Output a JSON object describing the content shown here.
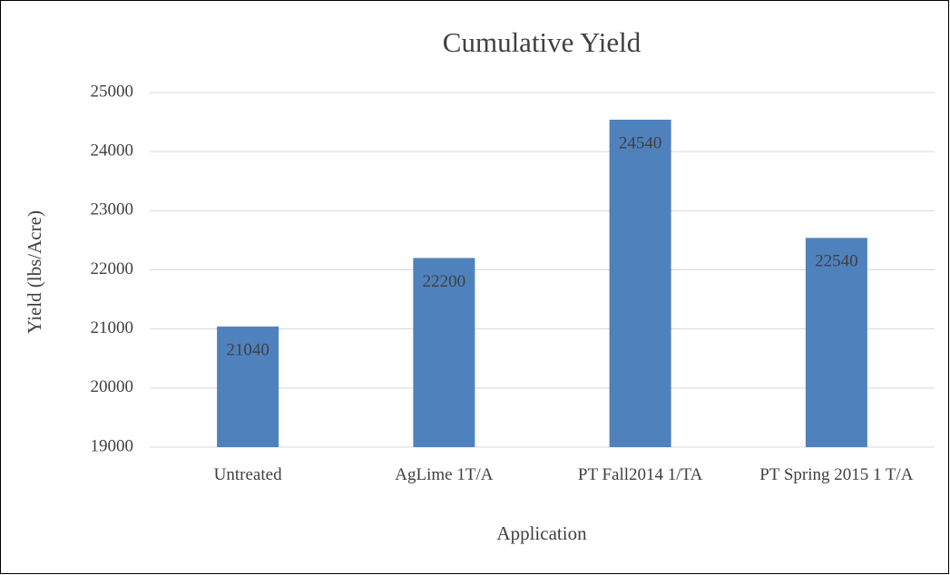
{
  "chart_data": {
    "type": "bar",
    "title": "Cumulative Yield",
    "x_label": "Application",
    "y_label": "Yield (lbs/Acre)",
    "categories": [
      "Untreated",
      "AgLime 1T/A",
      "PT Fall2014 1/TA",
      "PT Spring 2015 1 T/A"
    ],
    "values": [
      21040,
      22200,
      24540,
      22540
    ],
    "color": "#4f81bd",
    "ylim": [
      19000,
      25000
    ],
    "yticks": [
      19000,
      20000,
      21000,
      22000,
      23000,
      24000,
      25000
    ],
    "grid": true
  }
}
